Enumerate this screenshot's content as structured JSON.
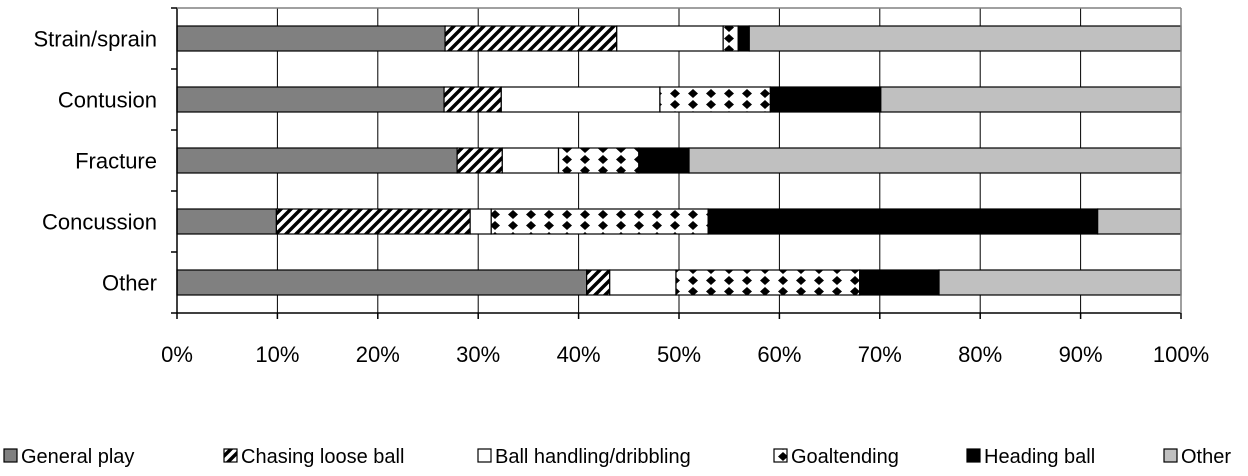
{
  "chart_data": {
    "type": "bar",
    "orientation": "horizontal",
    "stacked": "percent",
    "categories": [
      "Strain/sprain",
      "Contusion",
      "Fracture",
      "Concussion",
      "Other"
    ],
    "series": [
      {
        "name": "General play",
        "color": "#808080",
        "pattern": "solid",
        "values": [
          26.7,
          26.6,
          27.9,
          9.9,
          40.8
        ]
      },
      {
        "name": "Chasing loose ball",
        "color": "#000000",
        "pattern": "diagonal-stripes",
        "values": [
          17.1,
          5.7,
          4.5,
          19.3,
          2.3
        ]
      },
      {
        "name": "Ball handling/dribbling",
        "color": "#ffffff",
        "pattern": "solid",
        "values": [
          10.6,
          15.8,
          5.6,
          2.1,
          6.6
        ]
      },
      {
        "name": "Goaltending",
        "color": "#000000",
        "pattern": "diamonds",
        "values": [
          1.5,
          11.0,
          8.0,
          21.6,
          18.3
        ]
      },
      {
        "name": "Heading ball",
        "color": "#000000",
        "pattern": "solid",
        "values": [
          1.1,
          11.0,
          5.0,
          38.8,
          7.9
        ]
      },
      {
        "name": "Other",
        "color": "#c0c0c0",
        "pattern": "solid",
        "values": [
          43.0,
          29.9,
          49.0,
          8.3,
          24.1
        ]
      }
    ],
    "xlim": [
      0,
      100
    ],
    "x_ticks": [
      "0%",
      "10%",
      "20%",
      "30%",
      "40%",
      "50%",
      "60%",
      "70%",
      "80%",
      "90%",
      "100%"
    ],
    "grid": "vertical",
    "legend_position": "bottom"
  }
}
